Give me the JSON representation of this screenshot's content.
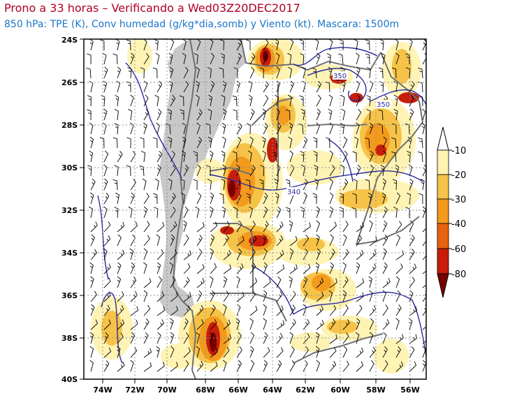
{
  "header": {
    "title": "Prono a 33 horas – Verificando a Wed03Z20DEC2017",
    "subtitle": "850 hPa: TPE (K), Conv humedad (g/kg*dia,somb) y Viento (kt). Mascara: 1500m"
  },
  "map": {
    "lat_labels": [
      "24S",
      "26S",
      "28S",
      "30S",
      "32S",
      "34S",
      "36S",
      "38S",
      "40S"
    ],
    "lon_labels": [
      "74W",
      "72W",
      "70W",
      "68W",
      "66W",
      "64W",
      "62W",
      "60W",
      "58W",
      "56W"
    ],
    "contour_labels": [
      "350",
      "350",
      "340"
    ],
    "colors": {
      "mask": "#c8c8c8",
      "border": "#707070",
      "contour": "#2a2aa0",
      "gridline": "#909090"
    }
  },
  "colorbar": {
    "labels": [
      "-10",
      "-20",
      "-30",
      "-40",
      "-60",
      "-80"
    ],
    "colors": [
      "#ffffff",
      "#fff3b0",
      "#f6c348",
      "#f39a1d",
      "#e8620f",
      "#c71d0a",
      "#7a0000"
    ]
  }
}
